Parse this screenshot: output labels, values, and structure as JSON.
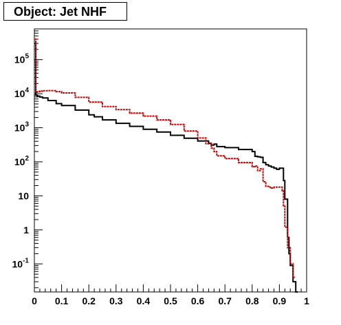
{
  "chart_data": {
    "type": "line",
    "title": "Object: Jet NHF",
    "xlabel": "",
    "ylabel": "",
    "y_scale": "log",
    "xlim": [
      0,
      1
    ],
    "ylim": [
      0.015,
      800000
    ],
    "x_ticks": [
      "0",
      "0.1",
      "0.2",
      "0.3",
      "0.4",
      "0.5",
      "0.6",
      "0.7",
      "0.8",
      "0.9",
      "1"
    ],
    "y_ticks": [
      {
        "base": "10",
        "exp": "5",
        "value": 100000
      },
      {
        "base": "10",
        "exp": "4",
        "value": 10000
      },
      {
        "base": "10",
        "exp": "3",
        "value": 1000
      },
      {
        "base": "10",
        "exp": "2",
        "value": 100
      },
      {
        "base": "10",
        "exp": "",
        "value": 10
      },
      {
        "base": "1",
        "exp": "",
        "value": 1
      },
      {
        "base": "10",
        "exp": "-1",
        "value": 0.1
      }
    ],
    "grid": false,
    "legend": "none",
    "series": [
      {
        "color": "#000000",
        "style": "solid",
        "points": [
          [
            0,
            300000
          ],
          [
            0.005,
            9000
          ],
          [
            0.01,
            8500
          ],
          [
            0.02,
            8000
          ],
          [
            0.03,
            7500
          ],
          [
            0.05,
            6300
          ],
          [
            0.08,
            5100
          ],
          [
            0.1,
            4500
          ],
          [
            0.15,
            3300
          ],
          [
            0.2,
            2400
          ],
          [
            0.22,
            2100
          ],
          [
            0.25,
            1700
          ],
          [
            0.3,
            1350
          ],
          [
            0.35,
            1100
          ],
          [
            0.4,
            900
          ],
          [
            0.45,
            750
          ],
          [
            0.5,
            600
          ],
          [
            0.55,
            490
          ],
          [
            0.6,
            410
          ],
          [
            0.64,
            350
          ],
          [
            0.65,
            310
          ],
          [
            0.66,
            330
          ],
          [
            0.67,
            280
          ],
          [
            0.7,
            260
          ],
          [
            0.75,
            230
          ],
          [
            0.8,
            200
          ],
          [
            0.81,
            145
          ],
          [
            0.82,
            140
          ],
          [
            0.83,
            135
          ],
          [
            0.84,
            95
          ],
          [
            0.85,
            82
          ],
          [
            0.86,
            75
          ],
          [
            0.87,
            70
          ],
          [
            0.88,
            65
          ],
          [
            0.89,
            60
          ],
          [
            0.9,
            65
          ],
          [
            0.91,
            65
          ],
          [
            0.915,
            28
          ],
          [
            0.92,
            8
          ],
          [
            0.93,
            0.6
          ],
          [
            0.935,
            0.2
          ],
          [
            0.94,
            0.09
          ],
          [
            0.95,
            0.03
          ],
          [
            0.96,
            0.015
          ]
        ]
      },
      {
        "color": "#cc0000",
        "style": "dashed",
        "points": [
          [
            0,
            400000
          ],
          [
            0.005,
            11000
          ],
          [
            0.01,
            11500
          ],
          [
            0.02,
            12000
          ],
          [
            0.03,
            12200
          ],
          [
            0.05,
            12300
          ],
          [
            0.08,
            11500
          ],
          [
            0.1,
            10500
          ],
          [
            0.15,
            7800
          ],
          [
            0.2,
            5700
          ],
          [
            0.25,
            4200
          ],
          [
            0.3,
            3400
          ],
          [
            0.35,
            2700
          ],
          [
            0.4,
            2200
          ],
          [
            0.45,
            1700
          ],
          [
            0.5,
            1250
          ],
          [
            0.55,
            800
          ],
          [
            0.6,
            500
          ],
          [
            0.63,
            340
          ],
          [
            0.65,
            250
          ],
          [
            0.66,
            200
          ],
          [
            0.67,
            150
          ],
          [
            0.7,
            125
          ],
          [
            0.75,
            95
          ],
          [
            0.8,
            72
          ],
          [
            0.81,
            75
          ],
          [
            0.82,
            55
          ],
          [
            0.83,
            62
          ],
          [
            0.84,
            26
          ],
          [
            0.85,
            19
          ],
          [
            0.86,
            18
          ],
          [
            0.87,
            17
          ],
          [
            0.88,
            18
          ],
          [
            0.9,
            18
          ],
          [
            0.91,
            14
          ],
          [
            0.915,
            5
          ],
          [
            0.92,
            1.2
          ],
          [
            0.93,
            0.3
          ],
          [
            0.94,
            0.1
          ],
          [
            0.95,
            0.04
          ]
        ]
      }
    ]
  }
}
